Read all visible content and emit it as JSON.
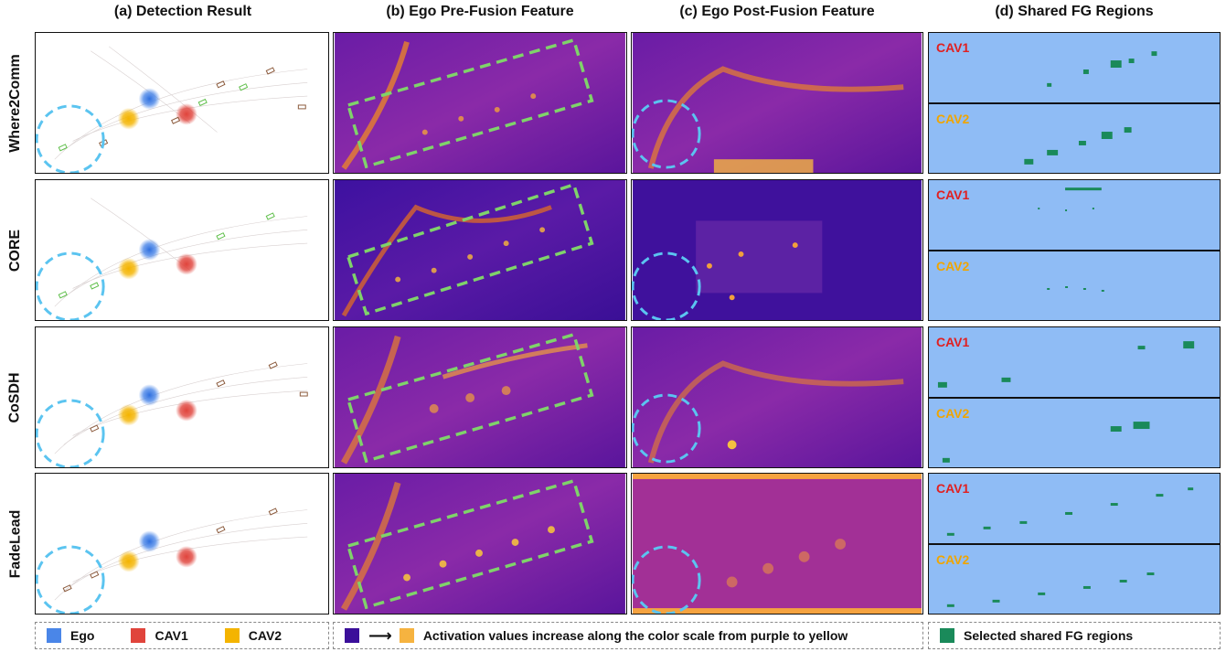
{
  "columns": [
    {
      "title": "(a) Detection Result"
    },
    {
      "title": "(b) Ego Pre-Fusion Feature"
    },
    {
      "title": "(c) Ego Post-Fusion Feature"
    },
    {
      "title": "(d) Shared FG Regions"
    }
  ],
  "rows": [
    {
      "method": "Where2Comm"
    },
    {
      "method": "CORE"
    },
    {
      "method": "CoSDH"
    },
    {
      "method": "FadeLead"
    }
  ],
  "fg_labels": {
    "cav1": "CAV1",
    "cav2": "CAV2"
  },
  "legend": {
    "detection": [
      {
        "label": "Ego",
        "color": "#4a86e8"
      },
      {
        "label": "CAV1",
        "color": "#e0443c"
      },
      {
        "label": "CAV2",
        "color": "#f4b400"
      }
    ],
    "activation": {
      "from_color": "#3b0f9a",
      "to_color": "#f6b340",
      "text": "Activation values increase along the color scale from purple to yellow"
    },
    "fg": {
      "label": "Selected shared FG regions",
      "color": "#1a8a5a"
    }
  },
  "colors": {
    "cav1_label": "#e02020",
    "cav2_label": "#f0a500",
    "fg_bg": "#8fbcf5",
    "fg_region": "#1a8a5a",
    "highlight_circle": "#5bc4f0",
    "highlight_box": "#7fd36a"
  }
}
